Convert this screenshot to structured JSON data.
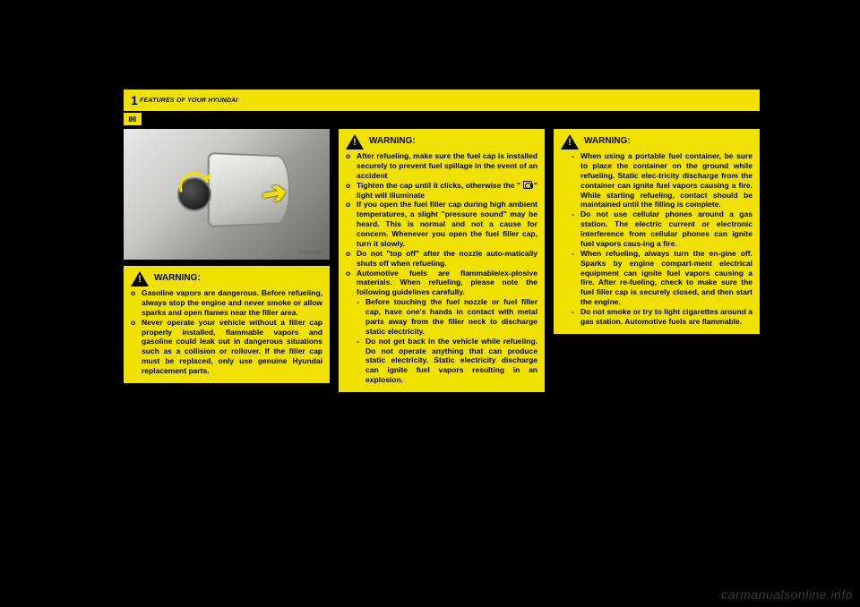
{
  "header": {
    "chapter_num": "1",
    "chapter_title": "FEATURES OF YOUR HYUNDAI",
    "page_num": "86"
  },
  "photo": {
    "image_id": "HNF2021"
  },
  "warning_label": "WARNING:",
  "col1_warn": {
    "items": [
      {
        "b": "o",
        "t": "Gasoline vapors are dangerous. Before refueling, always stop the engine and never smoke or allow sparks and open flames near the filler area."
      },
      {
        "b": "o",
        "t": "Never operate your vehicle without a filler cap properly installed, flammable vapors and gasoline could leak out in dangerous situations such as a collision or rollover.  If the filler cap must be replaced, only use genuine Hyundai replacement parts."
      }
    ]
  },
  "col2_warn": {
    "items": [
      {
        "b": "o",
        "t": "After refueling, make sure the fuel cap is installed securely to prevent fuel spillage in the event of an accident"
      },
      {
        "b": "o",
        "pre": "Tighten the cap until it clicks, otherwise the \" ",
        "post": " \" light will illuminate"
      },
      {
        "b": "o",
        "t": "If you open the fuel filler cap during high ambient temperatures, a slight \"pressure sound\" may be heard. This is normal and not a cause for concern. Whenever you open the fuel filler cap, turn it slowly."
      },
      {
        "b": "o",
        "t": "Do not \"top off\" after the nozzle auto-matically shuts off when refueling."
      },
      {
        "b": "o",
        "t": "Automotive fuels are flammable/ex-plosive materials. When refueling, please note the following guidelines carefully."
      }
    ],
    "subitems": [
      {
        "b": "-",
        "t": "Before touching the fuel nozzle or fuel filler cap, have one's hands in contact with metal parts away from the filler neck to discharge static electricity."
      },
      {
        "b": "-",
        "t": "Do not get back in the vehicle while refueling. Do not operate anything that can produce static electricity. Static electricity discharge can ignite fuel vapors resulting in an explosion."
      }
    ]
  },
  "col3_warn": {
    "items": [
      {
        "b": "-",
        "t": "When using a portable fuel container, be sure to place the container on the ground while refueling. Static elec-tricity discharge from the container can ignite fuel vapors causing a fire. While starting refueling, contact should be maintained until the filling is complete."
      },
      {
        "b": "-",
        "t": "Do not use cellular phones around a gas station. The electric current or electronic interference from cellular phones can ignite fuel vapors caus-ing a fire."
      },
      {
        "b": "-",
        "t": "When refueling, always turn the en-gine off. Sparks by engine compart-ment electrical equipment can ignite fuel vapors causing a fire. After re-fueling, check to make sure the fuel filler cap is securely closed, and then start the engine."
      },
      {
        "b": "-",
        "t": "Do not smoke or try to light cigarettes around a gas station. Automotive fuels are flammable."
      }
    ]
  },
  "watermark": "carmanualsonline.info"
}
